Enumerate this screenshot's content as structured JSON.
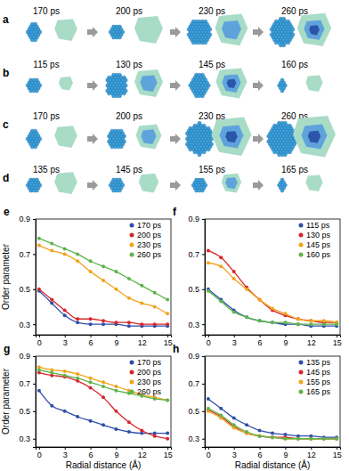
{
  "snapshots": [
    {
      "label": "a",
      "times": [
        "170 ps",
        "200 ps",
        "230 ps",
        "260 ps"
      ]
    },
    {
      "label": "b",
      "times": [
        "115 ps",
        "130 ps",
        "145 ps",
        "160 ps"
      ]
    },
    {
      "label": "c",
      "times": [
        "170 ps",
        "200 ps",
        "230 ps",
        "260 ps"
      ]
    },
    {
      "label": "d",
      "times": [
        "135 ps",
        "145 ps",
        "155 ps",
        "165 ps"
      ]
    }
  ],
  "chart_data": [
    {
      "type": "line",
      "title": "e",
      "ylabel": "Order parameter",
      "marker": "circle",
      "legend": "top-right",
      "x": [
        0,
        1.5,
        3,
        4.5,
        6,
        7.5,
        9,
        10.5,
        12,
        13.5,
        15
      ],
      "xlim": [
        -0.4,
        15.4
      ],
      "ylim": [
        0.24,
        0.9
      ],
      "xticks": [
        0,
        3,
        6,
        9,
        12,
        15
      ],
      "yticks": [
        0.3,
        0.5,
        0.7,
        0.9
      ],
      "series": [
        {
          "name": "170 ps",
          "color": "#2f4fa8",
          "values": [
            0.49,
            0.42,
            0.35,
            0.31,
            0.3,
            0.3,
            0.3,
            0.29,
            0.29,
            0.29,
            0.29
          ]
        },
        {
          "name": "200 ps",
          "color": "#d7262b",
          "values": [
            0.5,
            0.44,
            0.38,
            0.33,
            0.33,
            0.32,
            0.31,
            0.31,
            0.3,
            0.3,
            0.3
          ]
        },
        {
          "name": "230 ps",
          "color": "#f2a31b",
          "values": [
            0.75,
            0.72,
            0.7,
            0.66,
            0.6,
            0.55,
            0.5,
            0.45,
            0.42,
            0.4,
            0.36
          ]
        },
        {
          "name": "260 ps",
          "color": "#5cb54a",
          "values": [
            0.79,
            0.76,
            0.73,
            0.7,
            0.66,
            0.63,
            0.6,
            0.56,
            0.52,
            0.48,
            0.44
          ]
        }
      ]
    },
    {
      "type": "line",
      "title": "f",
      "marker": "circle",
      "legend": "top-right",
      "x": [
        0,
        1.5,
        3,
        4.5,
        6,
        7.5,
        9,
        10.5,
        12,
        13.5,
        15
      ],
      "xlim": [
        -0.4,
        15.4
      ],
      "ylim": [
        0.24,
        0.9
      ],
      "xticks": [
        0,
        3,
        6,
        9,
        12,
        15
      ],
      "yticks": [
        0.3,
        0.5,
        0.7,
        0.9
      ],
      "series": [
        {
          "name": "115 ps",
          "color": "#2f4fa8",
          "values": [
            0.5,
            0.44,
            0.38,
            0.34,
            0.32,
            0.31,
            0.3,
            0.3,
            0.29,
            0.29,
            0.29
          ]
        },
        {
          "name": "130 ps",
          "color": "#d7262b",
          "values": [
            0.72,
            0.68,
            0.6,
            0.51,
            0.44,
            0.38,
            0.35,
            0.33,
            0.32,
            0.31,
            0.31
          ]
        },
        {
          "name": "145 ps",
          "color": "#f2a31b",
          "values": [
            0.65,
            0.63,
            0.56,
            0.5,
            0.44,
            0.39,
            0.36,
            0.33,
            0.32,
            0.32,
            0.31
          ]
        },
        {
          "name": "160 ps",
          "color": "#5cb54a",
          "values": [
            0.49,
            0.43,
            0.37,
            0.34,
            0.32,
            0.31,
            0.31,
            0.3,
            0.3,
            0.3,
            0.3
          ]
        }
      ]
    },
    {
      "type": "line",
      "title": "g",
      "ylabel": "Order parameter",
      "xlabel": "Radial distance (Å)",
      "marker": "circle",
      "legend": "top-right",
      "x": [
        0,
        1.5,
        3,
        4.5,
        6,
        7.5,
        9,
        10.5,
        12,
        13.5,
        15
      ],
      "xlim": [
        -0.4,
        15.4
      ],
      "ylim": [
        0.24,
        0.9
      ],
      "xticks": [
        0,
        3,
        6,
        9,
        12,
        15
      ],
      "yticks": [
        0.3,
        0.5,
        0.7,
        0.9
      ],
      "series": [
        {
          "name": "170 ps",
          "color": "#2f4fa8",
          "values": [
            0.65,
            0.54,
            0.5,
            0.46,
            0.43,
            0.4,
            0.37,
            0.35,
            0.34,
            0.34,
            0.34
          ]
        },
        {
          "name": "200 ps",
          "color": "#d7262b",
          "values": [
            0.78,
            0.76,
            0.75,
            0.72,
            0.67,
            0.6,
            0.5,
            0.42,
            0.36,
            0.32,
            0.3
          ]
        },
        {
          "name": "230 ps",
          "color": "#f2a31b",
          "values": [
            0.82,
            0.8,
            0.79,
            0.77,
            0.74,
            0.71,
            0.68,
            0.65,
            0.62,
            0.6,
            0.58
          ]
        },
        {
          "name": "260 ps",
          "color": "#5cb54a",
          "values": [
            0.8,
            0.78,
            0.76,
            0.74,
            0.71,
            0.68,
            0.65,
            0.63,
            0.61,
            0.59,
            0.58
          ]
        }
      ]
    },
    {
      "type": "line",
      "title": "h",
      "xlabel": "Radial distance (Å)",
      "marker": "circle",
      "legend": "top-right",
      "x": [
        0,
        1.5,
        3,
        4.5,
        6,
        7.5,
        9,
        10.5,
        12,
        13.5,
        15
      ],
      "xlim": [
        -0.4,
        15.4
      ],
      "ylim": [
        0.24,
        0.9
      ],
      "xticks": [
        0,
        3,
        6,
        9,
        12,
        15
      ],
      "yticks": [
        0.3,
        0.5,
        0.7,
        0.9
      ],
      "series": [
        {
          "name": "135 ps",
          "color": "#2f4fa8",
          "values": [
            0.59,
            0.52,
            0.45,
            0.4,
            0.36,
            0.34,
            0.33,
            0.32,
            0.32,
            0.31,
            0.31
          ]
        },
        {
          "name": "145 ps",
          "color": "#d7262b",
          "values": [
            0.51,
            0.46,
            0.39,
            0.34,
            0.32,
            0.31,
            0.31,
            0.3,
            0.3,
            0.3,
            0.3
          ]
        },
        {
          "name": "155 ps",
          "color": "#f2a31b",
          "values": [
            0.5,
            0.45,
            0.38,
            0.34,
            0.32,
            0.31,
            0.3,
            0.3,
            0.3,
            0.3,
            0.3
          ]
        },
        {
          "name": "165 ps",
          "color": "#5cb54a",
          "values": [
            0.52,
            0.47,
            0.4,
            0.35,
            0.32,
            0.31,
            0.3,
            0.3,
            0.3,
            0.3,
            0.3
          ]
        }
      ]
    }
  ]
}
